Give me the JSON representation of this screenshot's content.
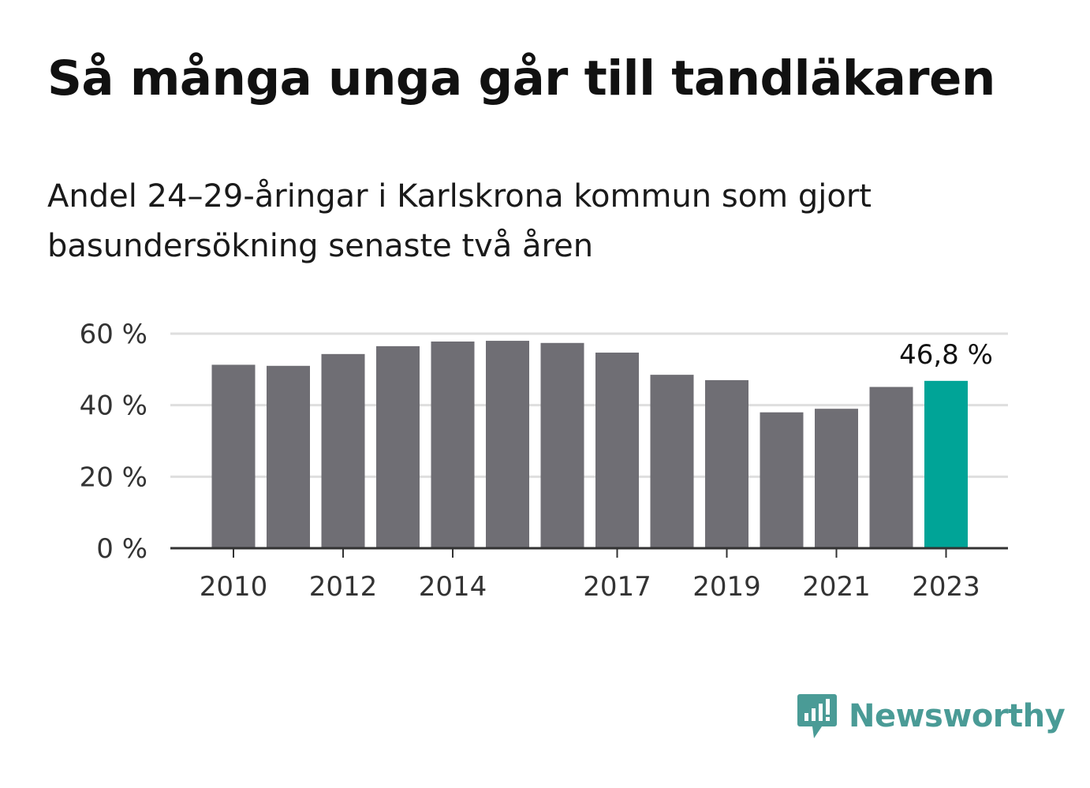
{
  "title": "Så många unga går till tandläkaren",
  "subtitle": "Andel 24–29-åringar i Karlskrona kommun som gjort basundersökning senaste två åren",
  "brand": "Newsworthy",
  "colors": {
    "bar": "#6f6e74",
    "highlight": "#00a497",
    "grid": "#dedede",
    "axis": "#333333",
    "brand": "#4a9b96"
  },
  "chart_data": {
    "type": "bar",
    "categories": [
      "2010",
      "2011",
      "2012",
      "2013",
      "2014",
      "2015",
      "2016",
      "2017",
      "2018",
      "2019",
      "2020",
      "2021",
      "2022",
      "2023"
    ],
    "x_tick_labels": [
      "2010",
      "2012",
      "2014",
      "2017",
      "2019",
      "2021",
      "2023"
    ],
    "values": [
      51.3,
      51.0,
      54.3,
      56.5,
      57.8,
      58.0,
      57.4,
      54.7,
      48.5,
      47.0,
      38.0,
      39.0,
      45.1,
      46.8
    ],
    "highlight": "2023",
    "annotation": {
      "category": "2023",
      "text": "46,8 %"
    },
    "yticks": [
      0,
      20,
      40,
      60
    ],
    "ytick_labels": [
      "0 %",
      "20 %",
      "40 %",
      "60 %"
    ],
    "ylim": [
      0,
      60
    ],
    "grid": true
  }
}
